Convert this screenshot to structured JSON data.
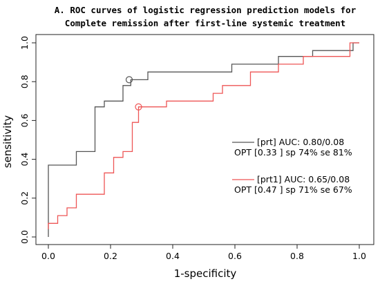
{
  "chart_data": {
    "type": "line",
    "title_lines": [
      "A. ROC curves of logistic regression prediction models for",
      "Complete remission after first-line systemic treatment"
    ],
    "xlabel": "1-specificity",
    "ylabel": "sensitivity",
    "xlim": [
      0,
      1
    ],
    "ylim": [
      0,
      1
    ],
    "x_ticks": [
      "0.0",
      "0.2",
      "0.4",
      "0.6",
      "0.8",
      "1.0"
    ],
    "y_ticks": [
      "0.0",
      "0.2",
      "0.4",
      "0.6",
      "0.8",
      "1.0"
    ],
    "grid": false,
    "legend_position": "right-middle",
    "series": [
      {
        "name": "[prt] AUC: 0.80/0.08",
        "opt_text": "OPT [0.33 ] sp 74% se 81%",
        "color": "#555555",
        "points": [
          [
            0.0,
            0.0
          ],
          [
            0.0,
            0.37
          ],
          [
            0.09,
            0.37
          ],
          [
            0.09,
            0.44
          ],
          [
            0.15,
            0.44
          ],
          [
            0.15,
            0.67
          ],
          [
            0.18,
            0.67
          ],
          [
            0.18,
            0.7
          ],
          [
            0.24,
            0.7
          ],
          [
            0.24,
            0.78
          ],
          [
            0.265,
            0.78
          ],
          [
            0.265,
            0.81
          ],
          [
            0.32,
            0.81
          ],
          [
            0.32,
            0.85
          ],
          [
            0.59,
            0.85
          ],
          [
            0.59,
            0.89
          ],
          [
            0.74,
            0.89
          ],
          [
            0.74,
            0.93
          ],
          [
            0.85,
            0.93
          ],
          [
            0.85,
            0.96
          ],
          [
            0.98,
            0.96
          ],
          [
            0.98,
            1.0
          ],
          [
            1.0,
            1.0
          ]
        ],
        "opt_point": [
          0.26,
          0.81
        ]
      },
      {
        "name": "[prt1] AUC: 0.65/0.08",
        "opt_text": "OPT [0.47 ] sp 71% se 67%",
        "color": "#ee5555",
        "points": [
          [
            0.0,
            0.04
          ],
          [
            0.0,
            0.07
          ],
          [
            0.03,
            0.07
          ],
          [
            0.03,
            0.11
          ],
          [
            0.06,
            0.11
          ],
          [
            0.06,
            0.15
          ],
          [
            0.09,
            0.15
          ],
          [
            0.09,
            0.22
          ],
          [
            0.18,
            0.22
          ],
          [
            0.18,
            0.33
          ],
          [
            0.21,
            0.33
          ],
          [
            0.21,
            0.41
          ],
          [
            0.24,
            0.41
          ],
          [
            0.24,
            0.44
          ],
          [
            0.27,
            0.44
          ],
          [
            0.27,
            0.59
          ],
          [
            0.29,
            0.59
          ],
          [
            0.29,
            0.67
          ],
          [
            0.38,
            0.67
          ],
          [
            0.38,
            0.7
          ],
          [
            0.53,
            0.7
          ],
          [
            0.53,
            0.74
          ],
          [
            0.56,
            0.74
          ],
          [
            0.56,
            0.78
          ],
          [
            0.65,
            0.78
          ],
          [
            0.65,
            0.85
          ],
          [
            0.74,
            0.85
          ],
          [
            0.74,
            0.89
          ],
          [
            0.82,
            0.89
          ],
          [
            0.82,
            0.93
          ],
          [
            0.97,
            0.93
          ],
          [
            0.97,
            1.0
          ],
          [
            1.0,
            1.0
          ]
        ],
        "opt_point": [
          0.29,
          0.67
        ]
      }
    ]
  }
}
